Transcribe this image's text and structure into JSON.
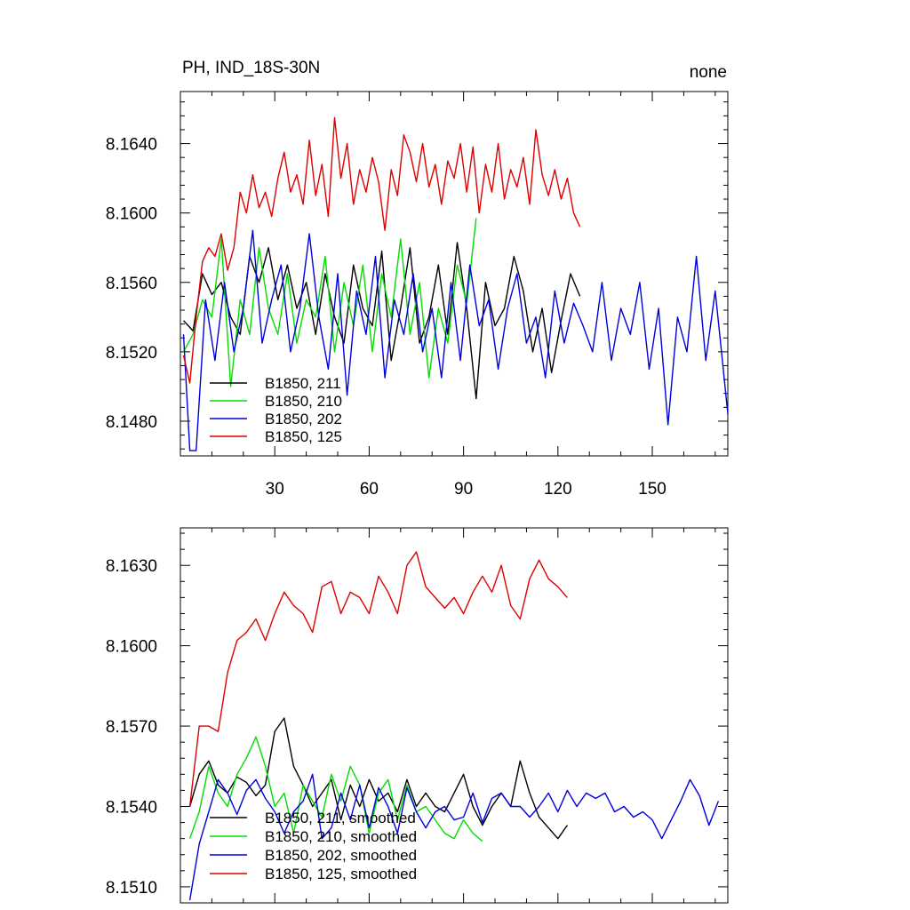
{
  "figure": {
    "title_left": "PH, IND_18S-30N",
    "title_right": "none"
  },
  "chart_data": [
    {
      "type": "line",
      "title": "PH, IND_18S-30N",
      "title_right": "none",
      "xlabel": "",
      "ylabel": "",
      "xlim": [
        0,
        174
      ],
      "ylim": [
        8.146,
        8.167
      ],
      "xticks": [
        30,
        60,
        90,
        120,
        150
      ],
      "yticks": [
        8.148,
        8.152,
        8.156,
        8.16,
        8.164
      ],
      "xtick_labels": [
        "30",
        "60",
        "90",
        "120",
        "150"
      ],
      "ytick_labels": [
        "8.1480",
        "8.1520",
        "8.1560",
        "8.1600",
        "8.1640"
      ],
      "legend_position": "bottom-left",
      "series": [
        {
          "name": "B1850, 211",
          "color": "#000000",
          "x": [
            1,
            4,
            7,
            10,
            13,
            16,
            19,
            22,
            25,
            28,
            31,
            34,
            37,
            40,
            43,
            46,
            49,
            52,
            55,
            58,
            61,
            64,
            67,
            70,
            73,
            76,
            79,
            82,
            85,
            88,
            91,
            94,
            97,
            100,
            103,
            106,
            109,
            112,
            115,
            118,
            121,
            124,
            127
          ],
          "y": [
            8.1538,
            8.1532,
            8.1565,
            8.1553,
            8.156,
            8.154,
            8.153,
            8.1575,
            8.156,
            8.158,
            8.155,
            8.157,
            8.1545,
            8.156,
            8.153,
            8.1565,
            8.154,
            8.1525,
            8.157,
            8.1545,
            8.1535,
            8.1578,
            8.1515,
            8.1545,
            8.158,
            8.1525,
            8.154,
            8.157,
            8.153,
            8.1583,
            8.1545,
            8.1493,
            8.156,
            8.1535,
            8.1545,
            8.1575,
            8.1555,
            8.152,
            8.1545,
            8.1508,
            8.1538,
            8.1565,
            8.1552
          ]
        },
        {
          "name": "B1850, 210",
          "color": "#00dd00",
          "x": [
            1,
            4,
            7,
            10,
            13,
            16,
            19,
            22,
            25,
            28,
            31,
            34,
            37,
            40,
            43,
            46,
            49,
            52,
            55,
            58,
            61,
            64,
            67,
            70,
            73,
            76,
            79,
            82,
            85,
            88,
            91,
            94
          ],
          "y": [
            8.152,
            8.153,
            8.155,
            8.154,
            8.1585,
            8.15,
            8.155,
            8.153,
            8.158,
            8.1545,
            8.153,
            8.1565,
            8.1525,
            8.155,
            8.154,
            8.1575,
            8.152,
            8.156,
            8.1535,
            8.157,
            8.152,
            8.1565,
            8.154,
            8.1585,
            8.153,
            8.156,
            8.1505,
            8.1545,
            8.1525,
            8.157,
            8.1548,
            8.1597
          ]
        },
        {
          "name": "B1850, 202",
          "color": "#0000dd",
          "x": [
            1,
            3,
            5,
            8,
            11,
            14,
            17,
            20,
            23,
            26,
            29,
            32,
            35,
            38,
            41,
            44,
            47,
            50,
            53,
            56,
            59,
            62,
            65,
            68,
            71,
            74,
            77,
            80,
            83,
            86,
            89,
            92,
            95,
            98,
            101,
            104,
            107,
            110,
            113,
            116,
            119,
            122,
            125,
            128,
            131,
            134,
            137,
            140,
            143,
            146,
            149,
            152,
            155,
            158,
            161,
            164,
            167,
            170,
            172,
            174
          ],
          "y": [
            8.153,
            8.1463,
            8.1463,
            8.155,
            8.1515,
            8.156,
            8.152,
            8.1545,
            8.159,
            8.1525,
            8.155,
            8.157,
            8.152,
            8.1545,
            8.1588,
            8.154,
            8.151,
            8.1565,
            8.1495,
            8.1555,
            8.153,
            8.1575,
            8.1505,
            8.155,
            8.153,
            8.1565,
            8.152,
            8.1545,
            8.1505,
            8.156,
            8.1515,
            8.157,
            8.1535,
            8.155,
            8.151,
            8.1545,
            8.1565,
            8.1525,
            8.154,
            8.1505,
            8.1555,
            8.1525,
            8.1548,
            8.1535,
            8.152,
            8.156,
            8.1515,
            8.1545,
            8.153,
            8.156,
            8.151,
            8.1545,
            8.1478,
            8.154,
            8.152,
            8.1575,
            8.1515,
            8.1555,
            8.152,
            8.1484
          ]
        },
        {
          "name": "B1850, 125",
          "color": "#dd0000",
          "x": [
            1,
            3,
            5,
            7,
            9,
            11,
            13,
            15,
            17,
            19,
            21,
            23,
            25,
            27,
            29,
            31,
            33,
            35,
            37,
            39,
            41,
            43,
            45,
            47,
            49,
            51,
            53,
            55,
            57,
            59,
            61,
            63,
            65,
            67,
            69,
            71,
            73,
            75,
            77,
            79,
            81,
            83,
            85,
            87,
            89,
            91,
            93,
            95,
            97,
            99,
            101,
            103,
            105,
            107,
            109,
            111,
            113,
            115,
            117,
            119,
            121,
            123,
            125,
            127
          ],
          "y": [
            8.1518,
            8.1502,
            8.154,
            8.1572,
            8.158,
            8.1575,
            8.1588,
            8.1567,
            8.158,
            8.1612,
            8.16,
            8.1622,
            8.1603,
            8.1612,
            8.1598,
            8.162,
            8.1635,
            8.1612,
            8.1622,
            8.1605,
            8.1642,
            8.161,
            8.1628,
            8.1598,
            8.1655,
            8.162,
            8.164,
            8.1605,
            8.1625,
            8.1612,
            8.1632,
            8.1618,
            8.159,
            8.1625,
            8.161,
            8.1645,
            8.1635,
            8.1618,
            8.164,
            8.1615,
            8.1628,
            8.1605,
            8.163,
            8.162,
            8.164,
            8.1612,
            8.1638,
            8.16,
            8.1628,
            8.1612,
            8.164,
            8.1608,
            8.1625,
            8.1615,
            8.1632,
            8.1605,
            8.1648,
            8.1622,
            8.161,
            8.1625,
            8.1608,
            8.162,
            8.16,
            8.1592
          ]
        }
      ]
    },
    {
      "type": "line",
      "title": "",
      "xlabel": "",
      "ylabel": "",
      "xlim": [
        0,
        174
      ],
      "ylim": [
        8.1504,
        8.1644
      ],
      "xticks": [
        30,
        60,
        90,
        120,
        150
      ],
      "yticks": [
        8.151,
        8.154,
        8.157,
        8.16,
        8.163
      ],
      "ytick_labels": [
        "8.1510",
        "8.1540",
        "8.1570",
        "8.1600",
        "8.1630"
      ],
      "legend_position": "bottom-left",
      "series": [
        {
          "name": "B1850, 211, smoothed",
          "color": "#000000",
          "x": [
            3,
            6,
            9,
            12,
            15,
            18,
            21,
            24,
            27,
            30,
            33,
            36,
            39,
            42,
            45,
            48,
            51,
            54,
            57,
            60,
            63,
            66,
            69,
            72,
            75,
            78,
            81,
            84,
            87,
            90,
            93,
            96,
            99,
            102,
            105,
            108,
            111,
            114,
            117,
            120,
            123
          ],
          "y": [
            8.154,
            8.1552,
            8.1557,
            8.1548,
            8.1545,
            8.1551,
            8.1549,
            8.1544,
            8.1548,
            8.1568,
            8.1573,
            8.1555,
            8.1548,
            8.154,
            8.1545,
            8.155,
            8.1535,
            8.1548,
            8.154,
            8.155,
            8.1542,
            8.1545,
            8.1538,
            8.155,
            8.154,
            8.1545,
            8.154,
            8.1538,
            8.1545,
            8.1552,
            8.154,
            8.1533,
            8.154,
            8.1545,
            8.154,
            8.1557,
            8.1545,
            8.1536,
            8.1532,
            8.1528,
            8.1533
          ]
        },
        {
          "name": "B1850, 210, smoothed",
          "color": "#00dd00",
          "x": [
            3,
            6,
            9,
            12,
            15,
            18,
            21,
            24,
            27,
            30,
            33,
            36,
            39,
            42,
            45,
            48,
            51,
            54,
            57,
            60,
            63,
            66,
            69,
            72,
            75,
            78,
            81,
            84,
            87,
            90,
            93,
            96
          ],
          "y": [
            8.1528,
            8.1538,
            8.1555,
            8.1545,
            8.154,
            8.1552,
            8.1558,
            8.1566,
            8.1555,
            8.154,
            8.1545,
            8.153,
            8.1548,
            8.1542,
            8.1536,
            8.1552,
            8.1542,
            8.1555,
            8.1548,
            8.153,
            8.1545,
            8.155,
            8.1535,
            8.1548,
            8.1538,
            8.154,
            8.1535,
            8.153,
            8.1528,
            8.1535,
            8.153,
            8.1527
          ]
        },
        {
          "name": "B1850, 202, smoothed",
          "color": "#0000dd",
          "x": [
            3,
            6,
            9,
            12,
            15,
            18,
            21,
            24,
            27,
            30,
            33,
            36,
            39,
            42,
            45,
            48,
            51,
            54,
            57,
            60,
            63,
            66,
            69,
            72,
            75,
            78,
            81,
            84,
            87,
            90,
            93,
            96,
            99,
            102,
            105,
            108,
            111,
            114,
            117,
            120,
            123,
            126,
            129,
            132,
            135,
            138,
            141,
            144,
            147,
            150,
            153,
            156,
            159,
            162,
            165,
            168,
            171
          ],
          "y": [
            8.1505,
            8.1526,
            8.1538,
            8.155,
            8.1545,
            8.1537,
            8.1546,
            8.155,
            8.1543,
            8.1538,
            8.153,
            8.1538,
            8.1542,
            8.1552,
            8.1528,
            8.1532,
            8.1545,
            8.1535,
            8.1548,
            8.1532,
            8.1547,
            8.154,
            8.153,
            8.1547,
            8.1538,
            8.1532,
            8.1538,
            8.154,
            8.1535,
            8.1536,
            8.1545,
            8.1534,
            8.1543,
            8.1545,
            8.154,
            8.154,
            8.1536,
            8.154,
            8.1545,
            8.1538,
            8.1546,
            8.154,
            8.1545,
            8.1543,
            8.1545,
            8.1538,
            8.154,
            8.1536,
            8.1538,
            8.1535,
            8.1528,
            8.1535,
            8.1542,
            8.155,
            8.1544,
            8.1533,
            8.1542
          ]
        },
        {
          "name": "B1850, 125, smoothed",
          "color": "#dd0000",
          "x": [
            3,
            6,
            9,
            12,
            15,
            18,
            21,
            24,
            27,
            30,
            33,
            36,
            39,
            42,
            45,
            48,
            51,
            54,
            57,
            60,
            63,
            66,
            69,
            72,
            75,
            78,
            81,
            84,
            87,
            90,
            93,
            96,
            99,
            102,
            105,
            108,
            111,
            114,
            117,
            120,
            123
          ],
          "y": [
            8.154,
            8.157,
            8.157,
            8.1568,
            8.159,
            8.1602,
            8.1605,
            8.161,
            8.1602,
            8.1612,
            8.162,
            8.1615,
            8.1612,
            8.1605,
            8.1622,
            8.1624,
            8.1612,
            8.162,
            8.1618,
            8.1612,
            8.1626,
            8.162,
            8.1612,
            8.163,
            8.1635,
            8.1622,
            8.1618,
            8.1614,
            8.1618,
            8.1612,
            8.162,
            8.1626,
            8.162,
            8.163,
            8.1615,
            8.161,
            8.1625,
            8.1632,
            8.1625,
            8.1622,
            8.1618
          ]
        }
      ]
    }
  ]
}
